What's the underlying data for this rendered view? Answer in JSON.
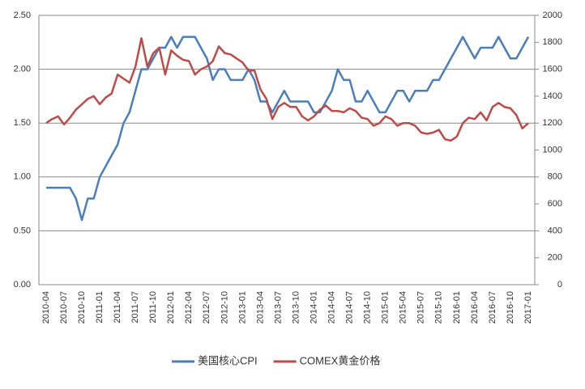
{
  "chart_data": {
    "type": "line",
    "categories": [
      "2010-04",
      null,
      null,
      "2010-07",
      null,
      null,
      "2010-10",
      null,
      null,
      "2011-01",
      null,
      null,
      "2011-04",
      null,
      null,
      "2011-07",
      null,
      null,
      "2011-10",
      null,
      null,
      "2012-01",
      null,
      null,
      "2012-04",
      null,
      null,
      "2012-07",
      null,
      null,
      "2012-10",
      null,
      null,
      "2013-01",
      null,
      null,
      "2013-04",
      null,
      null,
      "2013-07",
      null,
      null,
      "2013-10",
      null,
      null,
      "2014-01",
      null,
      null,
      "2014-04",
      null,
      null,
      "2014-07",
      null,
      null,
      "2014-10",
      null,
      null,
      "2015-01",
      null,
      null,
      "2015-04",
      null,
      null,
      "2015-07",
      null,
      null,
      "2015-10",
      null,
      null,
      "2016-01",
      null,
      null,
      "2016-04",
      null,
      null,
      "2016-07",
      null,
      null,
      "2016-10",
      null,
      null,
      "2017-01"
    ],
    "series": [
      {
        "name": "美国核心CPI",
        "color": "#4a7ebb",
        "values": [
          0.9,
          0.9,
          0.9,
          0.9,
          0.9,
          0.8,
          0.6,
          0.8,
          0.8,
          1.0,
          1.1,
          1.2,
          1.3,
          1.5,
          1.6,
          1.8,
          2.0,
          2.0,
          2.1,
          2.2,
          2.2,
          2.3,
          2.2,
          2.3,
          2.3,
          2.3,
          2.2,
          2.1,
          1.9,
          2.0,
          2.0,
          1.9,
          1.9,
          1.9,
          2.0,
          1.9,
          1.7,
          1.7,
          1.6,
          1.7,
          1.8,
          1.7,
          1.7,
          1.7,
          1.7,
          1.6,
          1.6,
          1.7,
          1.8,
          2.0,
          1.9,
          1.9,
          1.7,
          1.7,
          1.8,
          1.7,
          1.6,
          1.6,
          1.7,
          1.8,
          1.8,
          1.7,
          1.8,
          1.8,
          1.8,
          1.9,
          1.9,
          2.0,
          2.1,
          2.2,
          2.3,
          2.2,
          2.1,
          2.2,
          2.2,
          2.2,
          2.3,
          2.2,
          2.1,
          2.1,
          2.2,
          2.3
        ]
      },
      {
        "name": "COMEX黄金价格",
        "color": "#be4b48",
        "axis": "y2",
        "values": [
          1200,
          1230,
          1250,
          1190,
          1240,
          1300,
          1340,
          1380,
          1400,
          1340,
          1390,
          1420,
          1560,
          1530,
          1500,
          1620,
          1830,
          1620,
          1720,
          1760,
          1560,
          1740,
          1700,
          1670,
          1660,
          1560,
          1600,
          1620,
          1660,
          1770,
          1720,
          1710,
          1680,
          1650,
          1590,
          1590,
          1450,
          1380,
          1230,
          1320,
          1350,
          1320,
          1320,
          1250,
          1220,
          1250,
          1300,
          1330,
          1290,
          1290,
          1280,
          1310,
          1290,
          1240,
          1230,
          1180,
          1200,
          1250,
          1230,
          1180,
          1200,
          1200,
          1180,
          1130,
          1120,
          1130,
          1150,
          1080,
          1070,
          1100,
          1200,
          1240,
          1230,
          1280,
          1220,
          1320,
          1350,
          1320,
          1310,
          1260,
          1160,
          1200
        ]
      }
    ],
    "ylim": [
      0,
      2.5
    ],
    "yticks": [
      {
        "value": 0,
        "label": "0.00"
      },
      {
        "value": 0.5,
        "label": "0.50"
      },
      {
        "value": 1,
        "label": "1.00"
      },
      {
        "value": 1.5,
        "label": "1.50"
      },
      {
        "value": 2,
        "label": "2.00"
      },
      {
        "value": 2.5,
        "label": "2.50"
      }
    ],
    "y2lim": [
      0,
      2000
    ],
    "y2ticks": [
      0,
      200,
      400,
      600,
      800,
      1000,
      1200,
      1400,
      1600,
      1800,
      2000
    ],
    "grid": true,
    "legend": "bottom"
  }
}
